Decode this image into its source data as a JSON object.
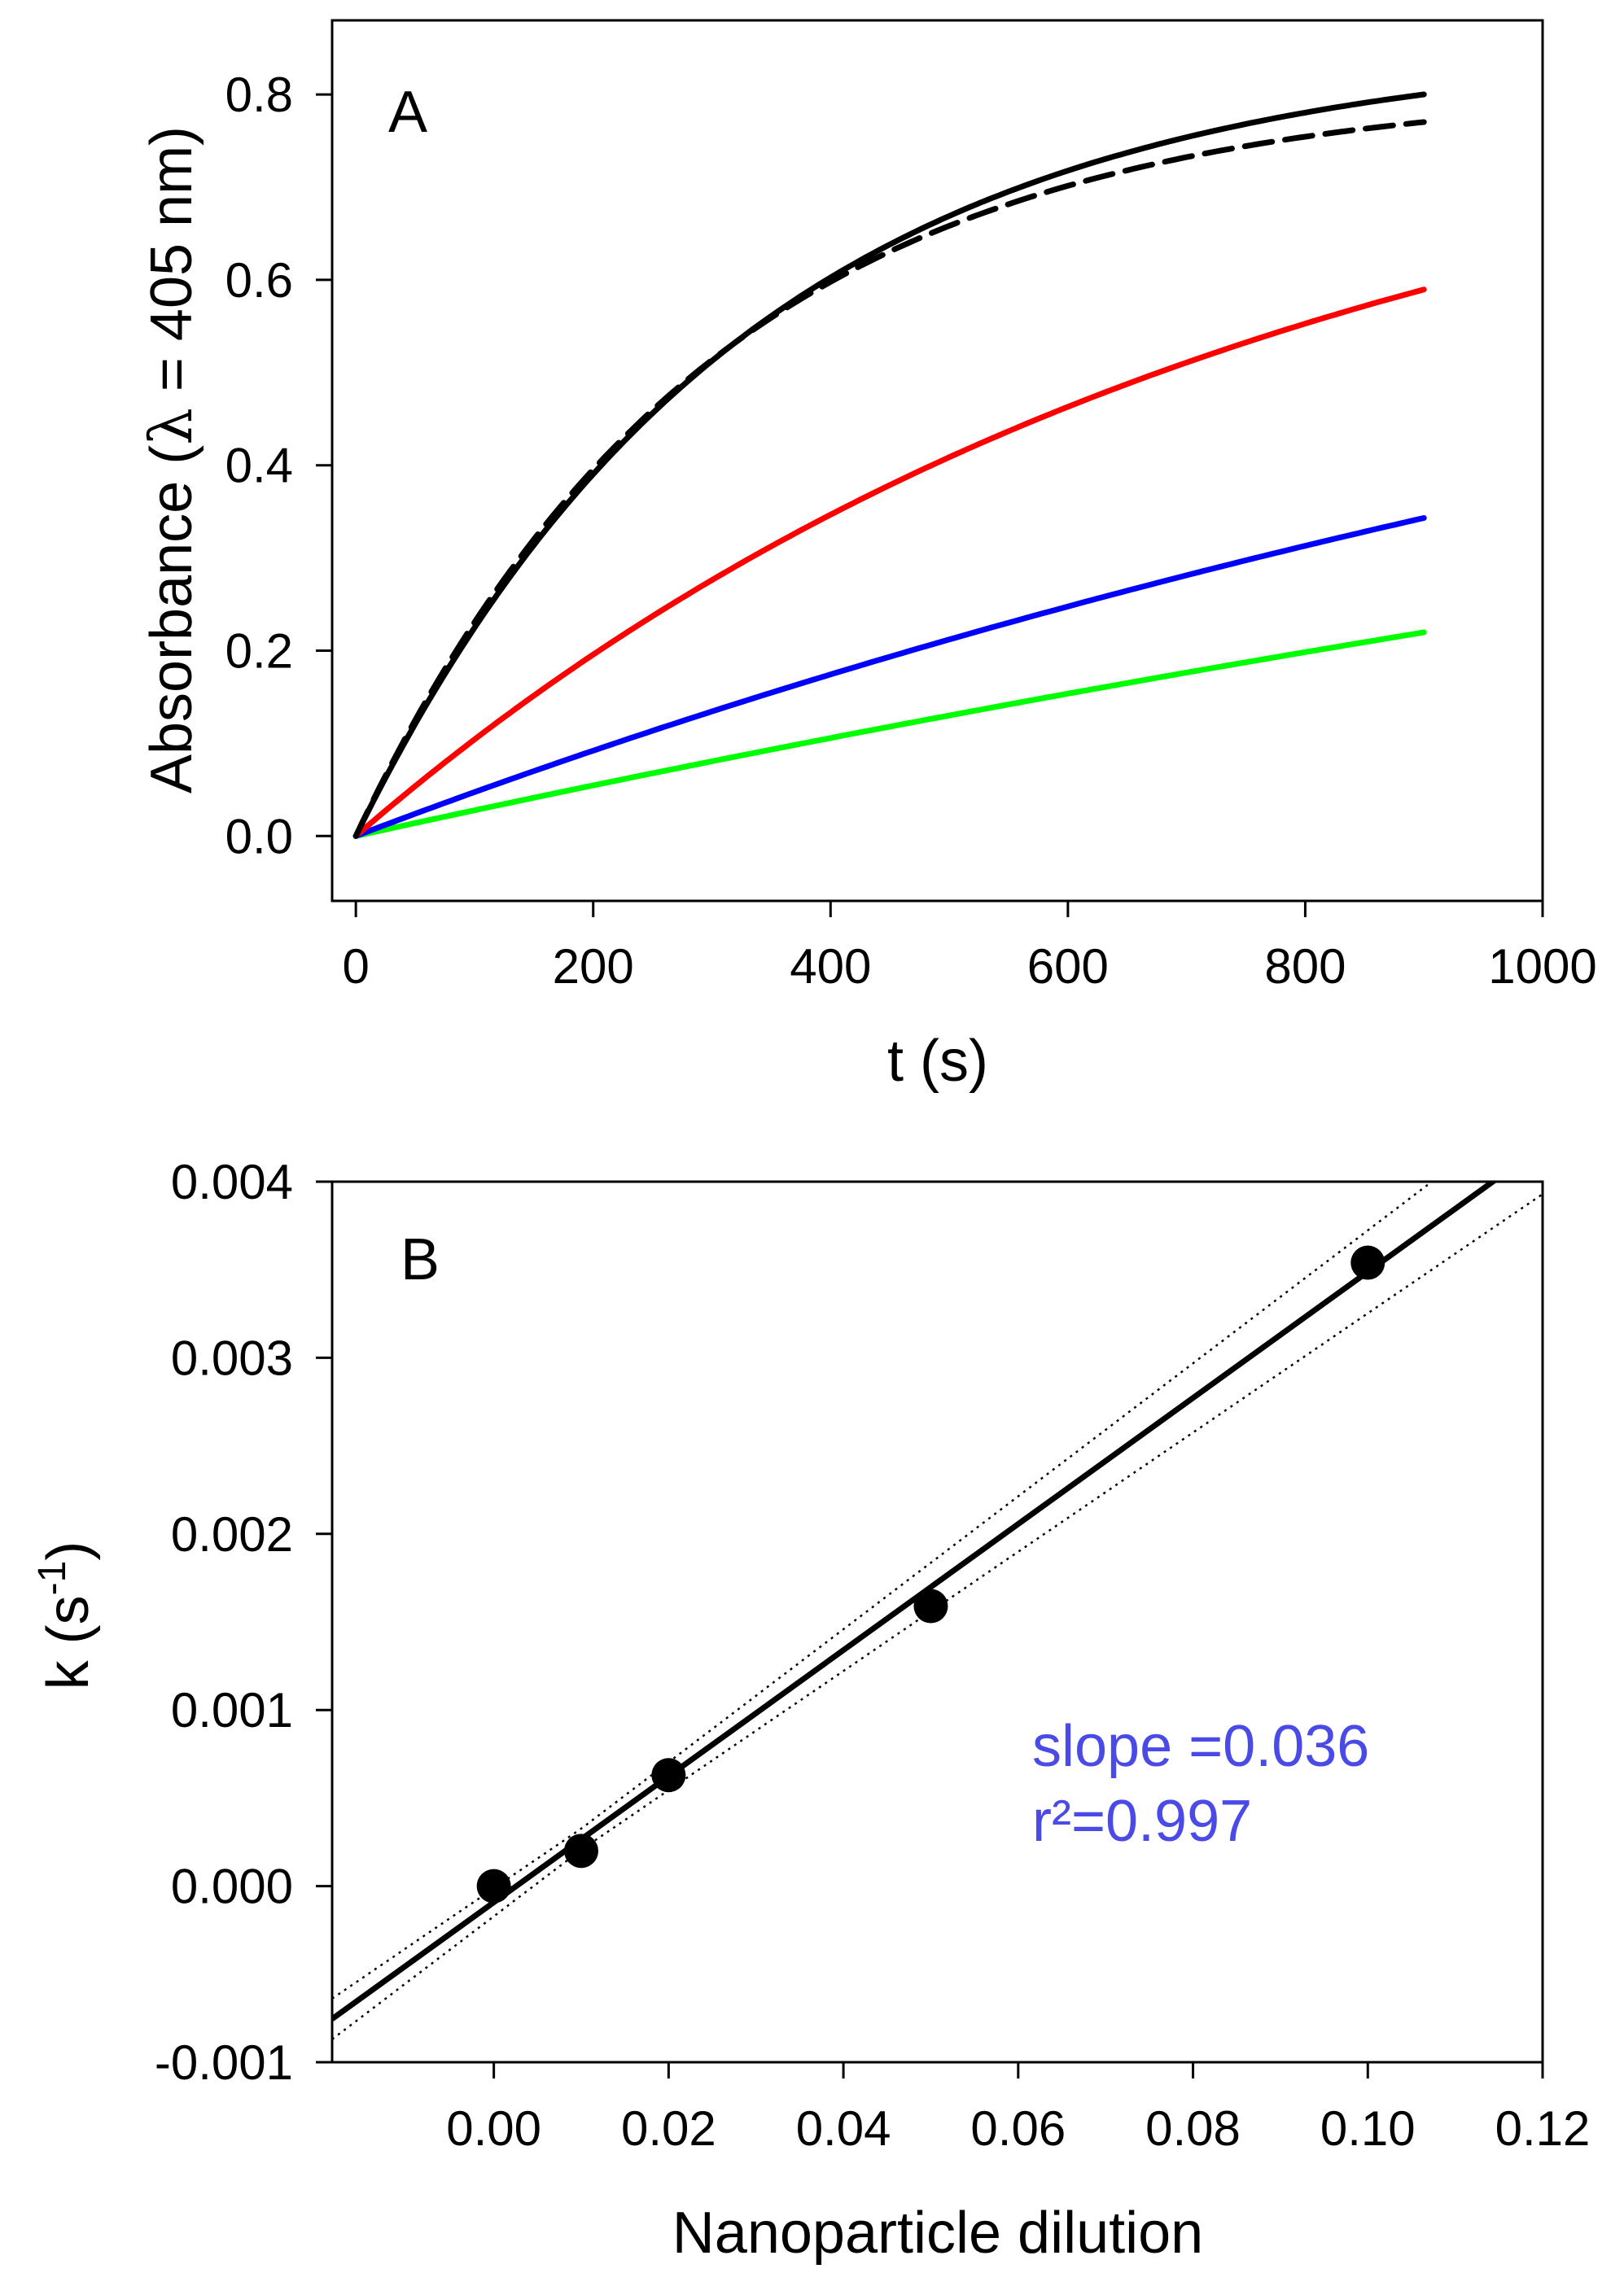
{
  "chart_data": [
    {
      "panel": "A",
      "type": "line",
      "panel_label": "A",
      "xlabel": "t (s)",
      "ylabel_prefix": "Absorbance (",
      "ylabel_symbol": "λ",
      "ylabel_suffix": " = 405 nm)",
      "xlim": [
        -20,
        1000
      ],
      "ylim": [
        -0.07,
        0.88
      ],
      "xticks": [
        0,
        200,
        400,
        600,
        800,
        1000
      ],
      "xtick_labels": [
        "0",
        "200",
        "400",
        "600",
        "800",
        "1000"
      ],
      "yticks": [
        0.0,
        0.2,
        0.4,
        0.6,
        0.8
      ],
      "ytick_labels": [
        "0.0",
        "0.2",
        "0.4",
        "0.6",
        "0.8"
      ],
      "series": [
        {
          "name": "black-data",
          "color": "#000000",
          "style": "solid",
          "model": "first-order",
          "amax": 0.855,
          "k": 0.00305,
          "t_end": 900
        },
        {
          "name": "black-fit",
          "color": "#000000",
          "style": "dashed",
          "model": "first-order",
          "amax": 0.81,
          "k": 0.00335,
          "t_end": 900
        },
        {
          "name": "red",
          "color": "#ff0000",
          "style": "solid",
          "model": "first-order",
          "amax": 0.855,
          "k": 0.0013,
          "t_end": 900
        },
        {
          "name": "blue",
          "color": "#0000ff",
          "style": "solid",
          "model": "first-order",
          "amax": 0.855,
          "k": 0.00057,
          "t_end": 900
        },
        {
          "name": "green",
          "color": "#00ff00",
          "style": "solid",
          "model": "first-order",
          "amax": 0.855,
          "k": 0.00033,
          "t_end": 900
        }
      ]
    },
    {
      "panel": "B",
      "type": "scatter",
      "panel_label": "B",
      "xlabel": "Nanoparticle dilution",
      "ylabel_base": "k (s",
      "ylabel_sup": "-1",
      "ylabel_close": ")",
      "xlim": [
        -0.0185,
        0.12
      ],
      "ylim": [
        -0.001,
        0.004
      ],
      "xticks": [
        0.0,
        0.02,
        0.04,
        0.06,
        0.08,
        0.1,
        0.12
      ],
      "xtick_labels": [
        "0.00",
        "0.02",
        "0.04",
        "0.06",
        "0.08",
        "0.10",
        "0.12"
      ],
      "yticks": [
        -0.001,
        0.0,
        0.001,
        0.002,
        0.003,
        0.004
      ],
      "ytick_labels": [
        "-0.001",
        "0.000",
        "0.001",
        "0.002",
        "0.003",
        "0.004"
      ],
      "points": [
        {
          "x": 0.0,
          "y": 0.0
        },
        {
          "x": 0.01,
          "y": 0.0002
        },
        {
          "x": 0.02,
          "y": 0.00063
        },
        {
          "x": 0.05,
          "y": 0.00159
        },
        {
          "x": 0.1,
          "y": 0.00354
        }
      ],
      "fit": {
        "slope": 0.0358,
        "intercept": -9.2e-05
      },
      "confidence_band": {
        "x0": 0.01,
        "half_width_at_x0": 6e-05,
        "growth": 0.00195
      },
      "annotation_lines": [
        "slope =0.036",
        "r²=0.997"
      ],
      "annotation_color": "#4a4ae6"
    }
  ]
}
